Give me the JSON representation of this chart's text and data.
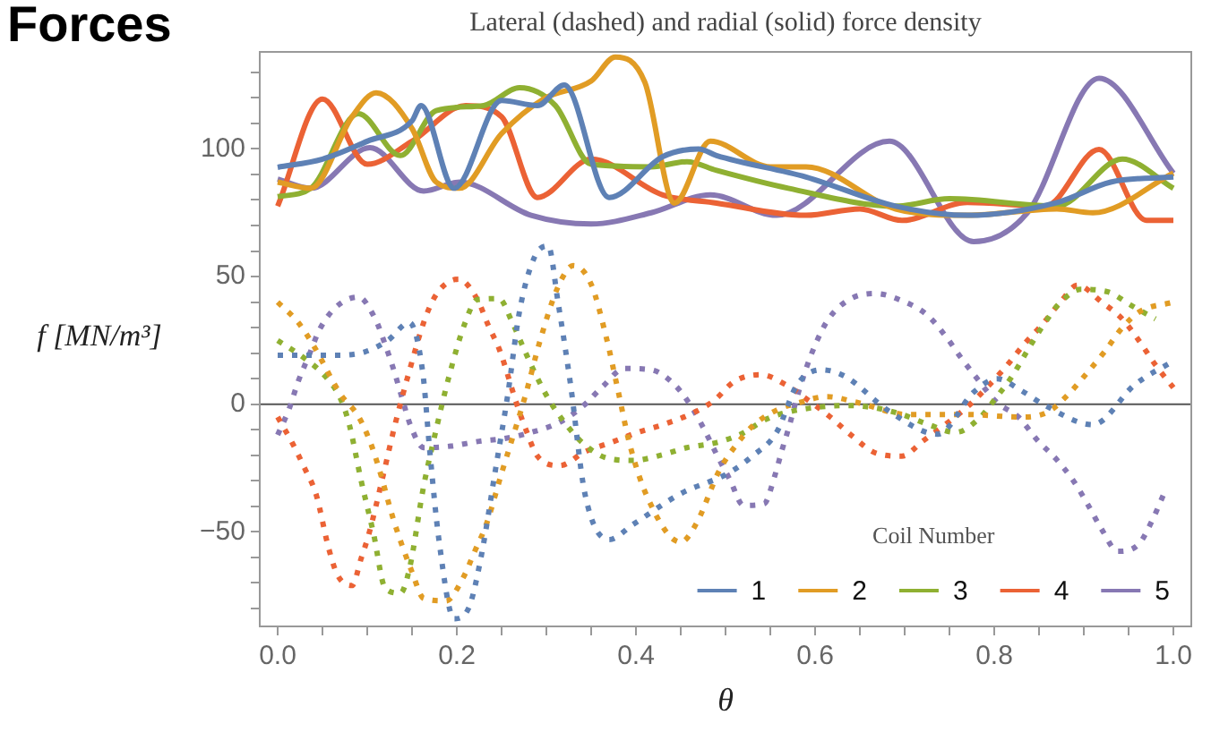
{
  "chart_data": {
    "type": "line",
    "title": "Forces",
    "subtitle": "Lateral (dashed) and radial (solid) force density",
    "xlabel": "θ",
    "ylabel": "f [MN/m³]",
    "legend_title": "Coil Number",
    "legend": "bottom right",
    "marker": "none",
    "xlim": [
      -0.02,
      1.02
    ],
    "ylim": [
      -87,
      138
    ],
    "xticks": [
      {
        "value": 0,
        "label": "0.0"
      },
      {
        "value": 0.05,
        "label": null
      },
      {
        "value": 0.1,
        "label": null
      },
      {
        "value": 0.15,
        "label": null
      },
      {
        "value": 0.2,
        "label": "0.2"
      },
      {
        "value": 0.25,
        "label": null
      },
      {
        "value": 0.3,
        "label": null
      },
      {
        "value": 0.35,
        "label": null
      },
      {
        "value": 0.4,
        "label": "0.4"
      },
      {
        "value": 0.45,
        "label": null
      },
      {
        "value": 0.5,
        "label": null
      },
      {
        "value": 0.55,
        "label": null
      },
      {
        "value": 0.6,
        "label": "0.6"
      },
      {
        "value": 0.65,
        "label": null
      },
      {
        "value": 0.7,
        "label": null
      },
      {
        "value": 0.75,
        "label": null
      },
      {
        "value": 0.8,
        "label": "0.8"
      },
      {
        "value": 0.85,
        "label": null
      },
      {
        "value": 0.9,
        "label": null
      },
      {
        "value": 0.95,
        "label": null
      },
      {
        "value": 1,
        "label": "1.0"
      }
    ],
    "yticks": [
      {
        "value": -80,
        "label": null
      },
      {
        "value": -70,
        "label": null
      },
      {
        "value": -60,
        "label": null
      },
      {
        "value": -50,
        "label": "−50"
      },
      {
        "value": -40,
        "label": null
      },
      {
        "value": -30,
        "label": null
      },
      {
        "value": -20,
        "label": null
      },
      {
        "value": -10,
        "label": null
      },
      0,
      {
        "value": 10,
        "label": null
      },
      {
        "value": 20,
        "label": null
      },
      {
        "value": 30,
        "label": null
      },
      {
        "value": 40,
        "label": null
      },
      50,
      {
        "value": 60,
        "label": null
      },
      {
        "value": 70,
        "label": null
      },
      {
        "value": 80,
        "label": null
      },
      {
        "value": 90,
        "label": null
      },
      100,
      {
        "value": 110,
        "label": null
      },
      {
        "value": 120,
        "label": null
      },
      {
        "value": 130,
        "label": null
      }
    ],
    "ref_lines": [
      {
        "axis": "y",
        "value": 0,
        "color": "#555555"
      }
    ],
    "series": [
      {
        "name": "1",
        "color": "#5e81b5",
        "x": [
          0,
          0.05,
          0.1,
          0.15,
          0.16,
          0.197,
          0.25,
          0.29,
          0.32,
          0.37,
          0.43,
          0.47,
          0.49,
          0.59,
          0.69,
          0.77,
          0.87,
          0.93,
          1
        ],
        "values": [
          92.8,
          96,
          103,
          111,
          117,
          84.6,
          119,
          117,
          125,
          81,
          97,
          100,
          97.4,
          89,
          77.6,
          74,
          79,
          87,
          89
        ]
      },
      {
        "name": "2",
        "color": "#e19c24",
        "x": [
          0,
          0.037,
          0.083,
          0.11,
          0.15,
          0.177,
          0.203,
          0.25,
          0.297,
          0.35,
          0.377,
          0.41,
          0.443,
          0.483,
          0.55,
          0.59,
          0.69,
          0.77,
          0.87,
          0.91,
          1
        ],
        "values": [
          87,
          84.6,
          112.6,
          122,
          108,
          87,
          84.6,
          106,
          119.6,
          126.6,
          136,
          126,
          78.8,
          103,
          93,
          93,
          76.5,
          74,
          76.5,
          75,
          90.5
        ]
      },
      {
        "name": "3",
        "color": "#8fb032",
        "x": [
          0,
          0.037,
          0.09,
          0.137,
          0.177,
          0.23,
          0.27,
          0.31,
          0.35,
          0.417,
          0.457,
          0.49,
          0.57,
          0.69,
          0.75,
          0.87,
          0.943,
          1
        ],
        "values": [
          81.3,
          84.6,
          113.8,
          97.4,
          115,
          117,
          124,
          117,
          94,
          93,
          95,
          91.6,
          84.6,
          77.6,
          80.5,
          77.6,
          96,
          84.6
        ]
      },
      {
        "name": "4",
        "color": "#eb6235",
        "x": [
          0,
          0.05,
          0.1,
          0.15,
          0.21,
          0.25,
          0.29,
          0.35,
          0.43,
          0.49,
          0.59,
          0.65,
          0.697,
          0.77,
          0.857,
          0.917,
          0.97,
          1
        ],
        "values": [
          77.6,
          119.5,
          94,
          103,
          117,
          112.6,
          81,
          96,
          82,
          78.8,
          74,
          76.5,
          72,
          79,
          77.6,
          99.8,
          72,
          72
        ]
      },
      {
        "name": "5",
        "color": "#8778b3",
        "x": [
          0,
          0.037,
          0.103,
          0.163,
          0.203,
          0.283,
          0.35,
          0.417,
          0.483,
          0.557,
          0.683,
          0.777,
          0.837,
          0.917,
          1
        ],
        "values": [
          88.2,
          84.6,
          100.5,
          83.5,
          87,
          74,
          70.6,
          75,
          82,
          74,
          103,
          63.7,
          75,
          127.7,
          90.5
        ]
      },
      {
        "color": "#5e81b5",
        "line_style": "dotted",
        "x": [
          0,
          0.067,
          0.097,
          0.123,
          0.147,
          0.162,
          0.17,
          0.18,
          0.197,
          0.213,
          0.227,
          0.243,
          0.257,
          0.27,
          0.287,
          0.302,
          0.313,
          0.327,
          0.343,
          0.37,
          0.397,
          0.45,
          0.503,
          0.53,
          0.557,
          0.58,
          0.607,
          0.633,
          0.683,
          0.737,
          0.777,
          0.803,
          0.83,
          0.857,
          0.91,
          0.957,
          1
        ],
        "values": [
          19.2,
          19.2,
          20.5,
          25,
          32,
          12.4,
          -19,
          -53,
          -84,
          -80,
          -60,
          -26,
          4,
          36.4,
          57.8,
          62,
          40,
          7.7,
          -35,
          -53,
          -47,
          -35,
          -27,
          -20.3,
          -11,
          7.7,
          13.5,
          11,
          -2.8,
          -11.7,
          4.7,
          10,
          5.4,
          -0.5,
          -8,
          7.7,
          17
        ]
      },
      {
        "color": "#e19c24",
        "line_style": "dotted",
        "x": [
          0,
          0.023,
          0.04,
          0.07,
          0.09,
          0.103,
          0.113,
          0.13,
          0.15,
          0.163,
          0.188,
          0.207,
          0.22,
          0.233,
          0.25,
          0.277,
          0.293,
          0.313,
          0.33,
          0.35,
          0.367,
          0.38,
          0.393,
          0.413,
          0.45,
          0.467,
          0.493,
          0.51,
          0.53,
          0.557,
          0.583,
          0.613,
          0.647,
          0.703,
          0.767,
          0.83,
          0.86,
          0.883,
          0.903,
          0.923,
          0.943,
          0.963,
          1
        ],
        "values": [
          40,
          32,
          23,
          4,
          -4.7,
          -14.5,
          -25,
          -46,
          -65.7,
          -76,
          -77,
          -68,
          -57.6,
          -47,
          -27,
          4,
          25,
          46,
          54.3,
          47,
          26,
          5.4,
          -15.6,
          -36.6,
          -54,
          -47,
          -26,
          -16.8,
          -8.6,
          -2.3,
          0.7,
          3,
          0.7,
          -4,
          -4,
          -5,
          -3,
          4,
          12,
          20.5,
          30,
          36.4,
          40
        ]
      },
      {
        "color": "#8fb032",
        "line_style": "dotted",
        "x": [
          0,
          0.03,
          0.053,
          0.07,
          0.08,
          0.093,
          0.107,
          0.12,
          0.137,
          0.147,
          0.163,
          0.177,
          0.191,
          0.209,
          0.223,
          0.247,
          0.262,
          0.275,
          0.287,
          0.302,
          0.32,
          0.34,
          0.367,
          0.397,
          0.427,
          0.457,
          0.49,
          0.517,
          0.547,
          0.573,
          0.607,
          0.637,
          0.67,
          0.697,
          0.727,
          0.757,
          0.783,
          0.803,
          0.82,
          0.837,
          0.853,
          0.873,
          0.897,
          0.927,
          0.953,
          0.98
        ],
        "values": [
          25,
          18,
          11,
          2.3,
          -8,
          -29.6,
          -50.6,
          -72,
          -74,
          -64.6,
          -32,
          -9.8,
          10.5,
          31.7,
          41,
          41.4,
          32,
          21.6,
          12.4,
          2.3,
          -7,
          -15,
          -21,
          -22,
          -20,
          -17,
          -15,
          -11.7,
          -5.6,
          -2.8,
          -1,
          -0.5,
          -1.6,
          -4,
          -8,
          -11,
          -5.6,
          3,
          11,
          21,
          30,
          39.6,
          45,
          44,
          38.7,
          33.4
        ]
      },
      {
        "color": "#eb6235",
        "line_style": "dotted",
        "x": [
          0,
          0.017,
          0.03,
          0.043,
          0.057,
          0.067,
          0.083,
          0.093,
          0.102,
          0.117,
          0.131,
          0.147,
          0.165,
          0.179,
          0.202,
          0.223,
          0.235,
          0.248,
          0.267,
          0.277,
          0.29,
          0.315,
          0.343,
          0.372,
          0.402,
          0.43,
          0.46,
          0.487,
          0.51,
          0.54,
          0.567,
          0.593,
          0.617,
          0.642,
          0.667,
          0.697,
          0.72,
          0.747,
          0.77,
          0.793,
          0.813,
          0.833,
          0.853,
          0.873,
          0.893,
          0.92,
          0.943,
          0.962,
          0.98,
          1
        ],
        "values": [
          -5,
          -15.6,
          -25,
          -35.4,
          -56.5,
          -67,
          -71,
          -60.6,
          -50.6,
          -29,
          -8,
          13,
          34,
          44,
          49,
          41,
          31,
          21,
          0,
          -9.8,
          -20.3,
          -24,
          -18.6,
          -15,
          -11,
          -8,
          -4,
          1.4,
          9,
          11.6,
          7.7,
          1.4,
          -5,
          -12.6,
          -19,
          -20.3,
          -14.5,
          -7.5,
          -1,
          7,
          14.7,
          23.4,
          31,
          39.6,
          46.6,
          40,
          33.4,
          24.7,
          15.4,
          6.5
        ]
      },
      {
        "color": "#8778b3",
        "line_style": "dotted",
        "x": [
          0,
          0.013,
          0.023,
          0.035,
          0.047,
          0.065,
          0.09,
          0.109,
          0.12,
          0.13,
          0.139,
          0.148,
          0.163,
          0.193,
          0.225,
          0.255,
          0.283,
          0.315,
          0.34,
          0.363,
          0.387,
          0.417,
          0.443,
          0.462,
          0.477,
          0.491,
          0.505,
          0.52,
          0.543,
          0.555,
          0.563,
          0.572,
          0.58,
          0.59,
          0.601,
          0.615,
          0.638,
          0.667,
          0.698,
          0.725,
          0.745,
          0.763,
          0.781,
          0.803,
          0.827,
          0.848,
          0.869,
          0.889,
          0.905,
          0.92,
          0.938,
          0.962,
          0.977,
          0.989
        ],
        "values": [
          -12,
          -1.6,
          9,
          19.2,
          29.4,
          38,
          42,
          33.4,
          23.4,
          13,
          2.3,
          -8,
          -17,
          -16.4,
          -14.5,
          -13.3,
          -11,
          -7,
          -1,
          7,
          14,
          13.5,
          7.7,
          -1,
          -10.4,
          -20.3,
          -29.6,
          -39.6,
          -39,
          -28,
          -18,
          -7.5,
          3,
          14,
          24,
          33.4,
          41,
          43.4,
          40.4,
          35,
          27,
          18.2,
          10,
          0.7,
          -5,
          -14,
          -21.4,
          -30.3,
          -39.6,
          -49,
          -57.6,
          -54.5,
          -45,
          -35.4
        ]
      }
    ]
  }
}
